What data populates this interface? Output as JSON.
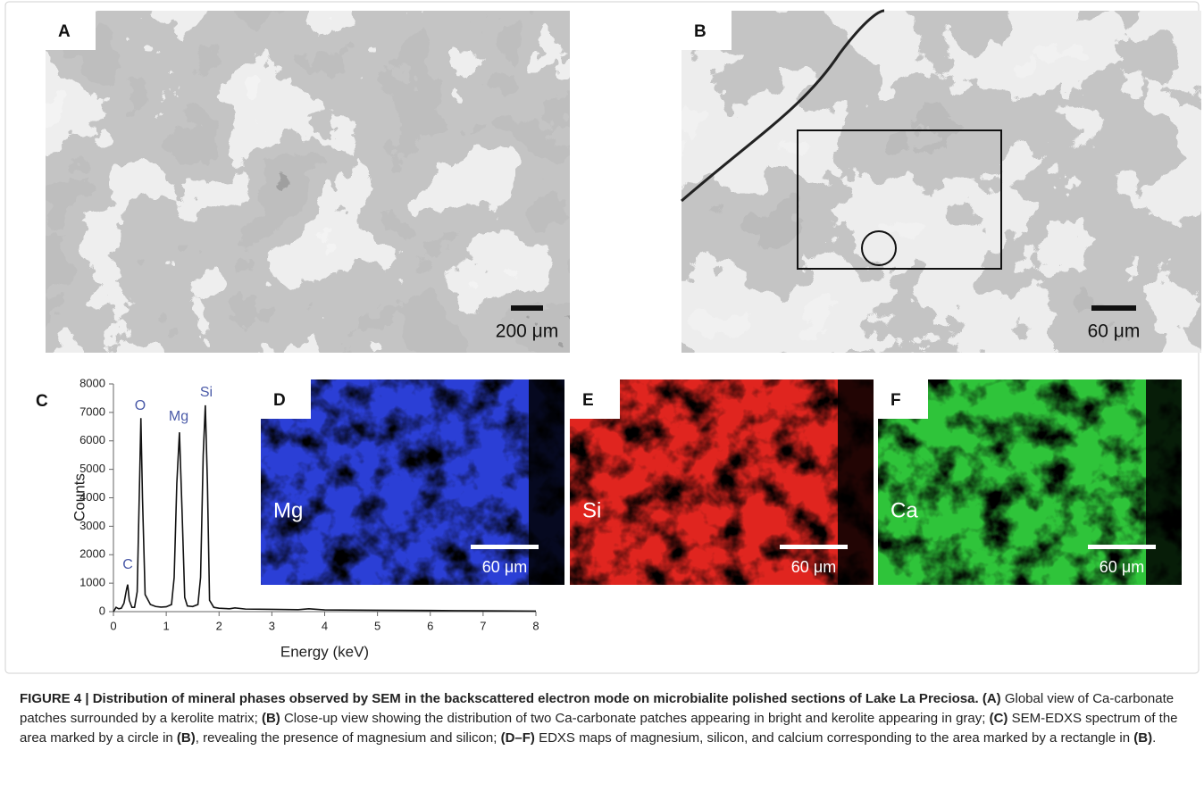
{
  "panels": [
    {
      "label": "A",
      "scale": "200 μm"
    },
    {
      "label": "B",
      "scale": "60 μm"
    }
  ],
  "maps": [
    {
      "label": "D",
      "element": "Mg",
      "scale": "60 μm",
      "color": "#2b3fd6"
    },
    {
      "label": "E",
      "element": "Si",
      "scale": "60 μm",
      "color": "#e0251f"
    },
    {
      "label": "F",
      "element": "Ca",
      "scale": "60 μm",
      "color": "#2fc43a"
    }
  ],
  "chart_data": {
    "type": "line",
    "label": "C",
    "color": "#111111",
    "xlabel": "Energy (keV)",
    "ylabel": "Counts",
    "annotations": [
      "C",
      "O",
      "Mg",
      "Si"
    ],
    "annotation_color": "#4a5aa8",
    "x": [
      0,
      0.05,
      0.1,
      0.15,
      0.2,
      0.25,
      0.27,
      0.3,
      0.35,
      0.4,
      0.45,
      0.5,
      0.52,
      0.55,
      0.6,
      0.7,
      0.8,
      0.9,
      1.0,
      1.1,
      1.15,
      1.2,
      1.25,
      1.3,
      1.35,
      1.4,
      1.5,
      1.6,
      1.65,
      1.7,
      1.74,
      1.78,
      1.82,
      1.9,
      2.0,
      2.2,
      2.3,
      2.5,
      3,
      3.5,
      3.7,
      4,
      5,
      6,
      7,
      8
    ],
    "values": [
      0,
      150,
      100,
      120,
      300,
      800,
      950,
      400,
      150,
      150,
      700,
      5000,
      6800,
      4000,
      600,
      250,
      180,
      160,
      170,
      250,
      1200,
      4500,
      6300,
      3500,
      500,
      200,
      180,
      250,
      1200,
      5500,
      7250,
      4500,
      400,
      150,
      120,
      100,
      130,
      90,
      80,
      70,
      100,
      60,
      50,
      40,
      30,
      20
    ],
    "xlim": [
      0,
      8
    ],
    "xticks": [
      0,
      1,
      2,
      3,
      4,
      5,
      6,
      7,
      8
    ],
    "ylim": [
      0,
      8000
    ],
    "yticks": [
      0,
      1000,
      2000,
      3000,
      4000,
      5000,
      6000,
      7000,
      8000
    ]
  },
  "caption": [
    {
      "text": "FIGURE 4 | Distribution of mineral phases observed by SEM in the backscattered electron mode on microbialite polished sections of Lake La Preciosa.",
      "bold": true
    },
    {
      "text": " ",
      "bold": false
    },
    {
      "text": "(A)",
      "bold": true
    },
    {
      "text": " Global view of Ca-carbonate patches surrounded by a kerolite matrix; ",
      "bold": false
    },
    {
      "text": "(B)",
      "bold": true
    },
    {
      "text": " Close-up view showing the distribution of two Ca-carbonate patches appearing in bright and kerolite appearing in gray; ",
      "bold": false
    },
    {
      "text": "(C)",
      "bold": true
    },
    {
      "text": " SEM-EDXS spectrum of the area marked by a circle in ",
      "bold": false
    },
    {
      "text": "(B)",
      "bold": true
    },
    {
      "text": ", revealing the presence of magnesium and silicon; ",
      "bold": false
    },
    {
      "text": "(D–F)",
      "bold": true
    },
    {
      "text": " EDXS maps of magnesium, silicon, and calcium corresponding to the area marked by a rectangle in ",
      "bold": false
    },
    {
      "text": "(B)",
      "bold": true
    },
    {
      "text": ".",
      "bold": false
    }
  ]
}
